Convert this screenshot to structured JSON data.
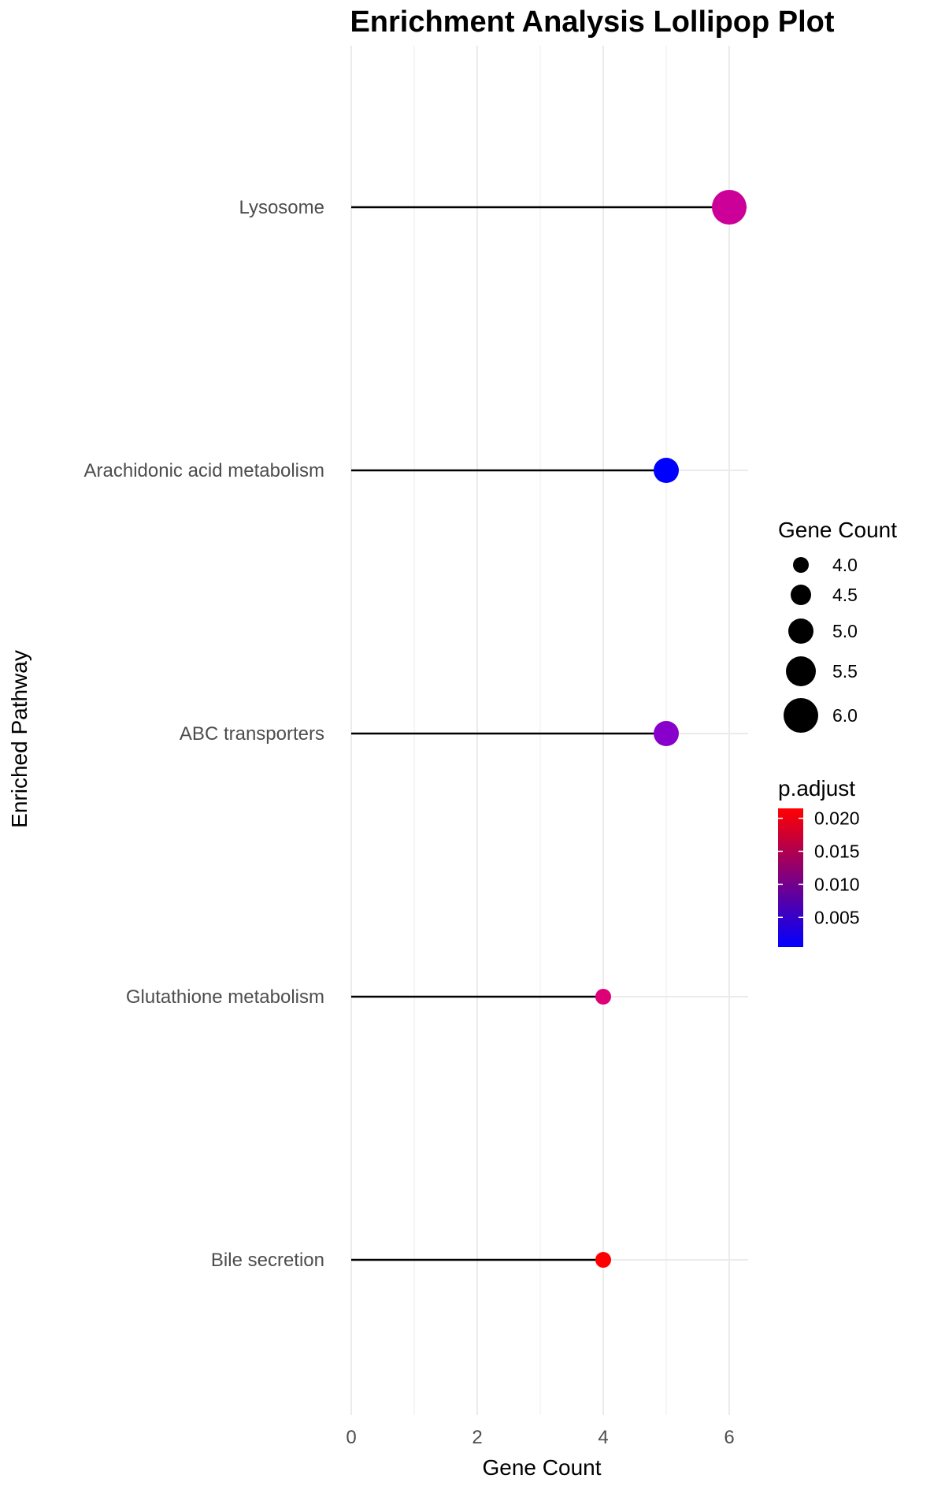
{
  "chart_data": {
    "type": "lollipop",
    "title": "Enrichment Analysis Lollipop Plot",
    "xlabel": "Gene Count",
    "ylabel": "Enriched Pathway",
    "xlim": [
      0,
      6.3
    ],
    "x_ticks": [
      0,
      2,
      4,
      6
    ],
    "x_tick_labels": [
      "0",
      "2",
      "4",
      "6"
    ],
    "grid": true,
    "categories": [
      "Lysosome",
      "Arachidonic acid metabolism",
      "ABC transporters",
      "Glutathione metabolism",
      "Bile secretion"
    ],
    "values": [
      6,
      5,
      5,
      4,
      4
    ],
    "p_adjust": [
      0.0125,
      0.0005,
      0.0055,
      0.0135,
      0.0215
    ],
    "colors": [
      "#cc0099",
      "#0000ff",
      "#8800cc",
      "#dd0077",
      "#ff0000"
    ],
    "size_legend": {
      "title": "Gene Count",
      "labels": [
        "4.0",
        "4.5",
        "5.0",
        "5.5",
        "6.0"
      ],
      "values": [
        4.0,
        4.5,
        5.0,
        5.5,
        6.0
      ]
    },
    "color_legend": {
      "title": "p.adjust",
      "labels": [
        "0.020",
        "0.015",
        "0.010",
        "0.005"
      ],
      "values": [
        0.02,
        0.015,
        0.01,
        0.005
      ],
      "range": [
        0.0005,
        0.0215
      ],
      "low_color": "#0000ff",
      "high_color": "#ff0000"
    }
  }
}
